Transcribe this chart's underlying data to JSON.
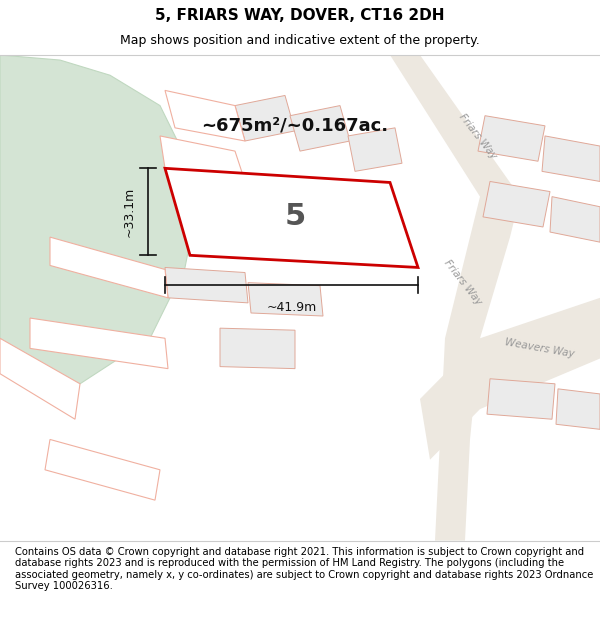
{
  "title": "5, FRIARS WAY, DOVER, CT16 2DH",
  "subtitle": "Map shows position and indicative extent of the property.",
  "footer": "Contains OS data © Crown copyright and database right 2021. This information is subject to Crown copyright and database rights 2023 and is reproduced with the permission of HM Land Registry. The polygons (including the associated geometry, namely x, y co-ordinates) are subject to Crown copyright and database rights 2023 Ordnance Survey 100026316.",
  "map_bg": "#f8f8f5",
  "map_border": "#cccccc",
  "green_color": "#d4e4d4",
  "green_edge": "#c0d8c0",
  "road_fill": "#ede8e0",
  "building_fill": "#ebebeb",
  "building_stroke": "#e0a898",
  "parcel_stroke_light": "#f0b0a0",
  "highlight_stroke": "#cc0000",
  "dim_color": "#111111",
  "road_label_color": "#999999",
  "text_color": "#111111",
  "area_label": "~675m²/~0.167ac.",
  "plot_label": "5",
  "dim_width": "~41.9m",
  "dim_height": "~33.1m",
  "title_fontsize": 11,
  "subtitle_fontsize": 9,
  "footer_fontsize": 7.2,
  "white": "#ffffff"
}
